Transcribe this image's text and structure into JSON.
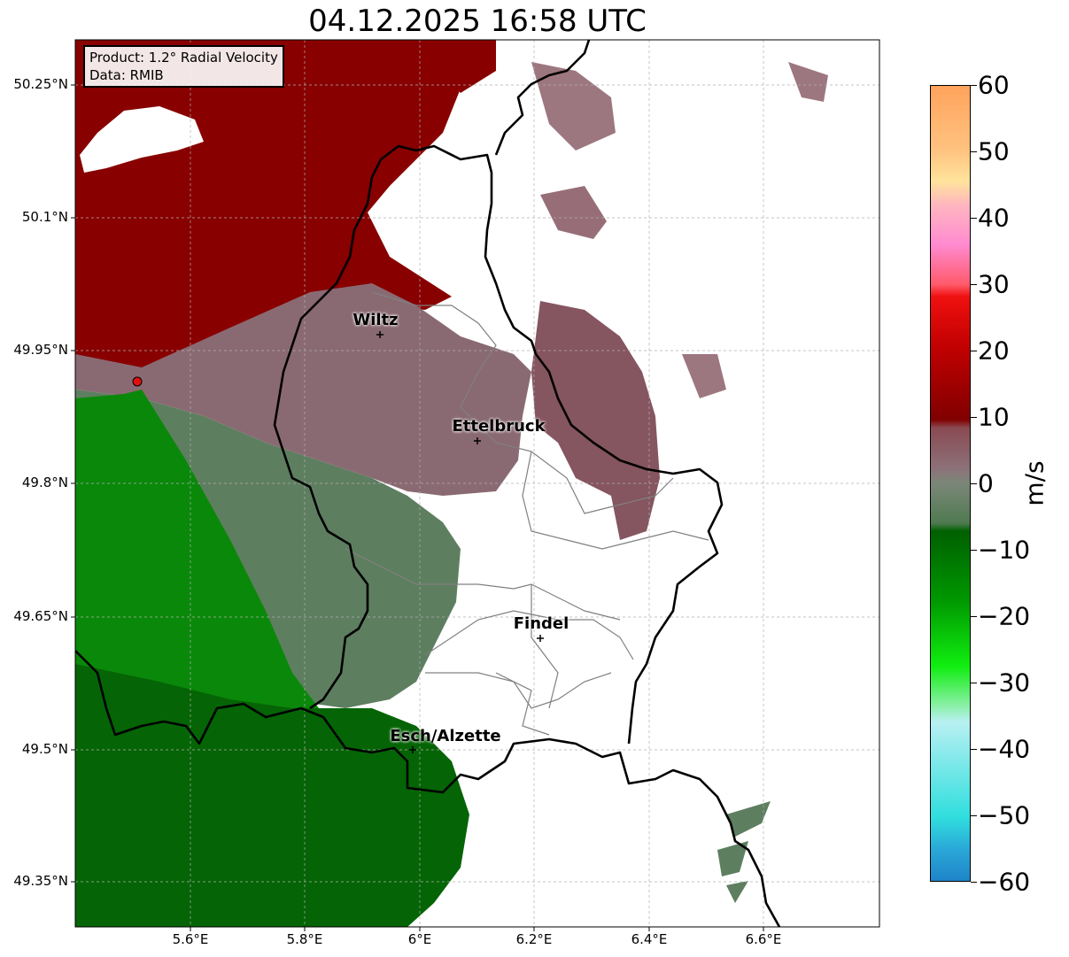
{
  "title": "04.12.2025 16:58 UTC",
  "info": {
    "product": "Product: 1.2° Radial Velocity",
    "source": "Data: RMIB"
  },
  "axes": {
    "lat_ticks": [
      "50.25°N",
      "50.1°N",
      "49.95°N",
      "49.8°N",
      "49.65°N",
      "49.5°N",
      "49.35°N"
    ],
    "lon_ticks": [
      "5.6°E",
      "5.8°E",
      "6°E",
      "6.2°E",
      "6.4°E",
      "6.6°E"
    ]
  },
  "cities": [
    {
      "name": "Wiltz",
      "lon": 5.93,
      "lat": 49.966
    },
    {
      "name": "Ettelbruck",
      "lon": 6.1,
      "lat": 49.847
    },
    {
      "name": "Findel",
      "lon": 6.21,
      "lat": 49.627
    },
    {
      "name": "Esch/Alzette",
      "lon": 5.98,
      "lat": 49.5
    }
  ],
  "radar_site": {
    "lon": 5.505,
    "lat": 49.914
  },
  "colorbar": {
    "unit": "m/s",
    "range": [
      -60,
      60
    ],
    "tick_labels": [
      "60",
      "50",
      "40",
      "30",
      "20",
      "10",
      "0",
      "−10",
      "−20",
      "−30",
      "−40",
      "−50",
      "−60"
    ],
    "colors": {
      "high": "#ffa35c",
      "red": "#e00000",
      "dark_red": "#8b0000",
      "pinkish_brown": "#8a5a62",
      "neutral": "#7c7280",
      "grey_green": "#5d7d5c",
      "dark_green": "#006400",
      "green": "#00b000",
      "light_green": "#7ff07f",
      "light_cyan": "#b5f0f0",
      "cyan": "#30dcdc",
      "blue": "#1e84c8"
    }
  },
  "colors": {
    "border": "#000000",
    "canton_lines": "#808080",
    "grid": "#b0b0b0"
  }
}
